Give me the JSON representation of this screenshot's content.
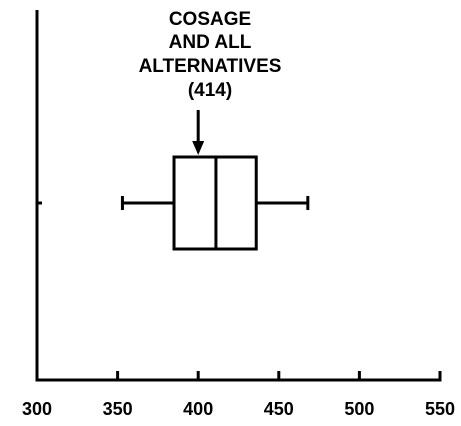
{
  "chart_data": {
    "type": "boxplot",
    "title": "",
    "xlabel": "",
    "ylabel": "",
    "xlim": [
      300,
      550
    ],
    "x_ticks": [
      300,
      350,
      400,
      450,
      500,
      550
    ],
    "x_tick_labels": [
      "300",
      "350",
      "400",
      "450",
      "500",
      "550"
    ],
    "grid": false,
    "box": {
      "whisker_low": 353,
      "q1": 385,
      "median": 411,
      "q3": 436,
      "whisker_high": 468
    },
    "annotation": {
      "lines": [
        "COSAGE",
        "AND ALL",
        "ALTERNATIVES",
        "(414)"
      ],
      "points_to_value": 400
    }
  }
}
